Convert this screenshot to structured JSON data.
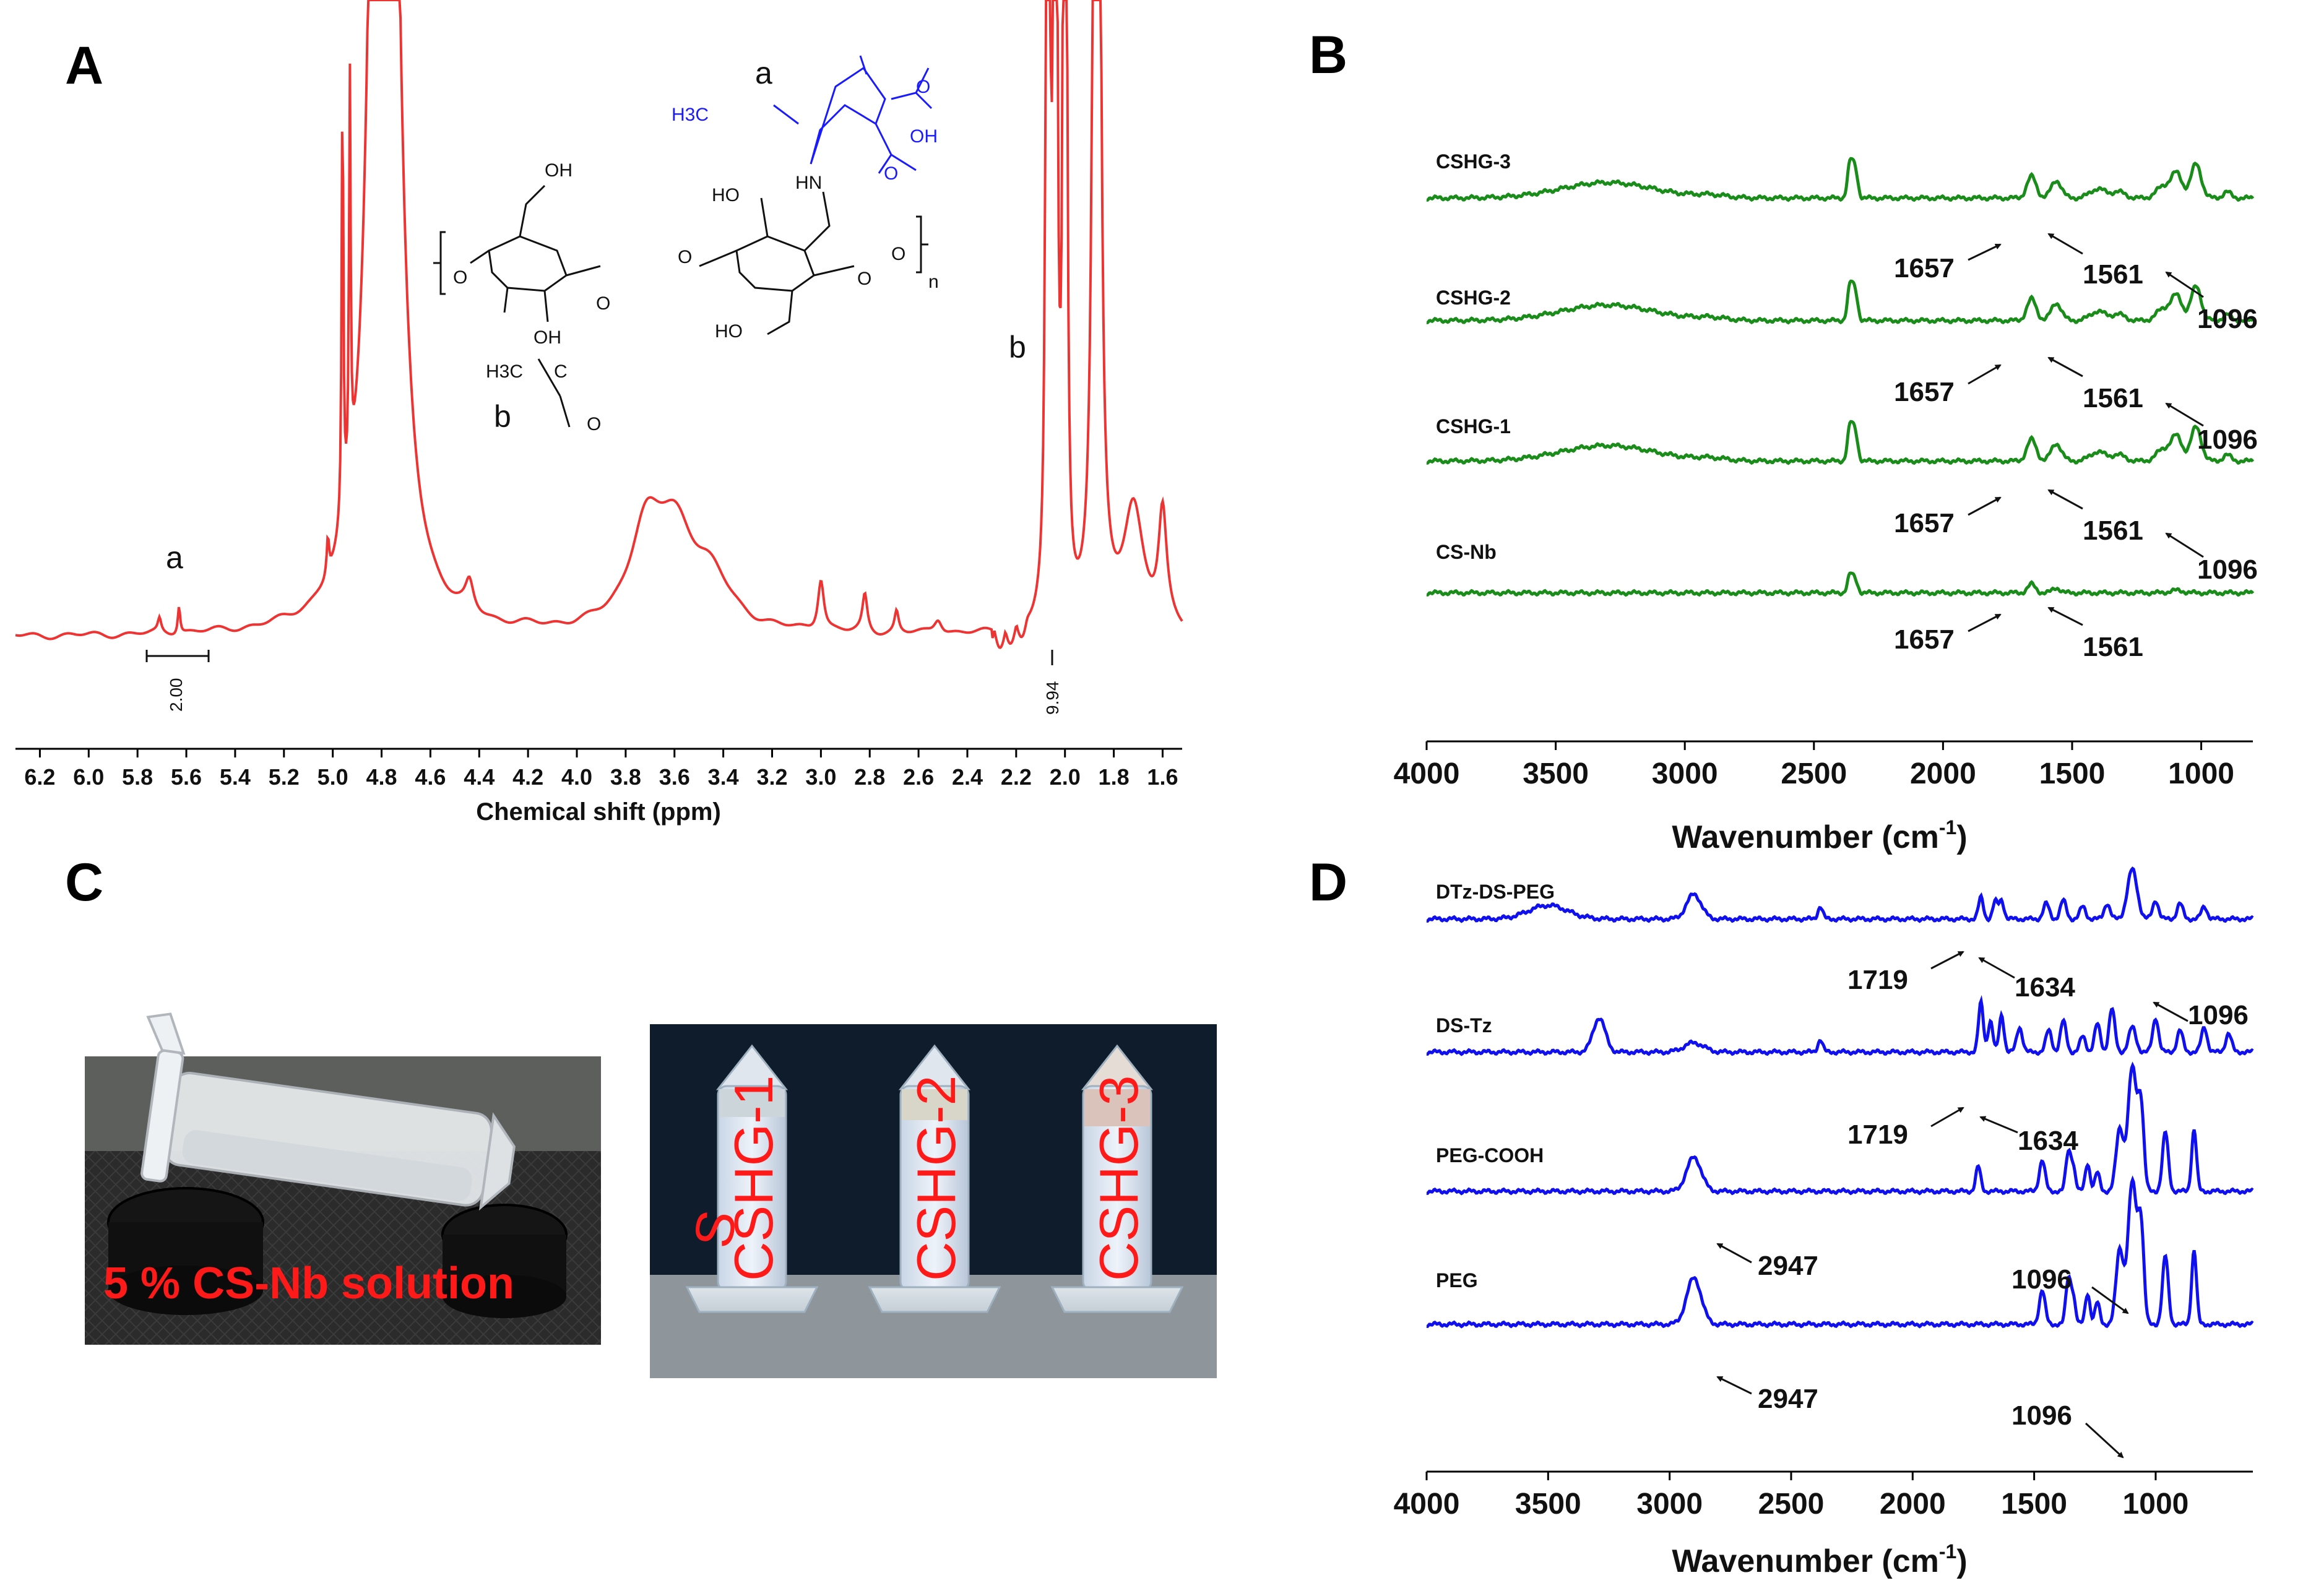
{
  "panels": {
    "A": {
      "letter": "A"
    },
    "B": {
      "letter": "B"
    },
    "C": {
      "letter": "C"
    },
    "D": {
      "letter": "D"
    }
  },
  "colors": {
    "nmr": "#ee3333",
    "ftir_b": "#1a8c1a",
    "ftir_d": "#1010ee",
    "caption": "#ff1a1a",
    "structure_blue": "#1a1aff"
  },
  "chart_data": [
    {
      "id": "A",
      "type": "line",
      "title": "",
      "xlabel": "Chemical shift (ppm)",
      "ylabel": "",
      "xlim": [
        6.3,
        1.52
      ],
      "xticks": [
        "6.2",
        "6.0",
        "5.8",
        "5.6",
        "5.4",
        "5.2",
        "5.0",
        "4.8",
        "4.6",
        "4.4",
        "4.2",
        "4.0",
        "3.8",
        "3.6",
        "3.4",
        "3.2",
        "3.0",
        "2.8",
        "2.6",
        "2.4",
        "2.2",
        "2.0",
        "1.8",
        "1.6"
      ],
      "peaks": [
        {
          "label": "a",
          "ppm": 5.63
        },
        {
          "label": "b",
          "ppm": 2.05
        }
      ],
      "integrals": [
        {
          "value": "2.00",
          "from": 5.75,
          "to": 5.52
        },
        {
          "value": "9.94",
          "from": 2.1,
          "to": 2.0
        }
      ],
      "structure": {
        "labels": [
          "a",
          "b"
        ],
        "atoms": [
          "H3C",
          "O",
          "OH",
          "HN",
          "O",
          "HO",
          "OH",
          "O",
          "O",
          "O",
          "O",
          "OH",
          "HO",
          "O",
          "H3C",
          "C",
          "O",
          "n"
        ]
      }
    },
    {
      "id": "B",
      "type": "line",
      "xlabel": "Wavenumber (cm-1)",
      "xlabel_main": "Wavenumber ",
      "xlabel_open": "(cm",
      "xlabel_sup": "-1",
      "xlabel_close": ")",
      "xlim": [
        4000,
        800
      ],
      "xticks": [
        "4000",
        "3500",
        "3000",
        "2500",
        "2000",
        "1500",
        "1000"
      ],
      "series": [
        {
          "name": "CSHG-3",
          "annotations": [
            "1657",
            "1561",
            "1096"
          ]
        },
        {
          "name": "CSHG-2",
          "annotations": [
            "1657",
            "1561",
            "1096"
          ]
        },
        {
          "name": "CSHG-1",
          "annotations": [
            "1657",
            "1561",
            "1096"
          ]
        },
        {
          "name": "CS-Nb",
          "annotations": [
            "1657",
            "1561"
          ]
        }
      ]
    },
    {
      "id": "D",
      "type": "line",
      "xlabel": "Wavenumber (cm-1)",
      "xlabel_main": "Wavenumber ",
      "xlabel_open": "(cm",
      "xlabel_sup": "-1",
      "xlabel_close": ")",
      "xlim": [
        4000,
        600
      ],
      "xticks": [
        "4000",
        "3500",
        "3000",
        "2500",
        "2000",
        "1500",
        "1000"
      ],
      "series": [
        {
          "name": "DTz-DS-PEG",
          "annotations": [
            "1719",
            "1634",
            "1096"
          ]
        },
        {
          "name": "DS-Tz",
          "annotations": [
            "1719",
            "1634"
          ]
        },
        {
          "name": "PEG-COOH",
          "annotations": [
            "2947",
            "1096"
          ]
        },
        {
          "name": "PEG",
          "annotations": [
            "2947",
            "1096"
          ]
        }
      ]
    }
  ],
  "photos": {
    "left_caption": "5 % CS-Nb solution",
    "tubes": [
      "CSHG-1",
      "CSHG-2",
      "CSHG-3"
    ],
    "marker_text": "S"
  }
}
